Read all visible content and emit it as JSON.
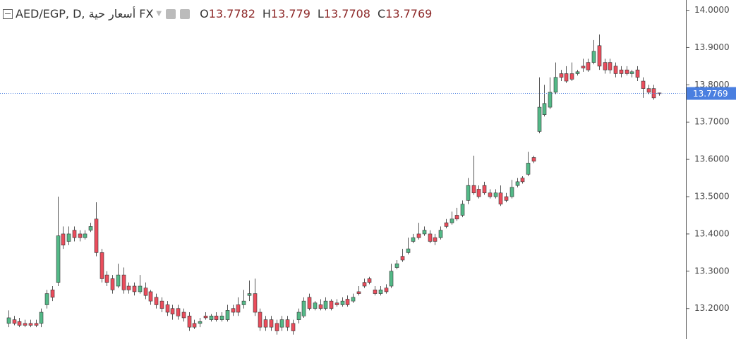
{
  "chart_data": {
    "type": "candlestick",
    "title": "AED/EGP, D, أسعار حية FX",
    "ohlc_labels": [
      "O",
      "H",
      "L",
      "C"
    ],
    "up_color": "#53b987",
    "down_color": "#eb4d5c",
    "last_price_color": "#4a7fe0",
    "ylim": [
      13.1182,
      14.0275
    ],
    "yticks": [
      {
        "value": 14.0,
        "label": "14.0000"
      },
      {
        "value": 13.9,
        "label": "13.9000"
      },
      {
        "value": 13.8,
        "label": "13.8000"
      },
      {
        "value": 13.7,
        "label": "13.7000"
      },
      {
        "value": 13.6,
        "label": "13.6000"
      },
      {
        "value": 13.5,
        "label": "13.5000"
      },
      {
        "value": 13.4,
        "label": "13.4000"
      },
      {
        "value": 13.3,
        "label": "13.3000"
      },
      {
        "value": 13.2,
        "label": "13.2000"
      }
    ],
    "candles": [
      {
        "open": 13.16,
        "high": 13.195,
        "low": 13.15,
        "close": 13.175
      },
      {
        "open": 13.17,
        "high": 13.18,
        "low": 13.155,
        "close": 13.16
      },
      {
        "open": 13.165,
        "high": 13.175,
        "low": 13.15,
        "close": 13.155
      },
      {
        "open": 13.16,
        "high": 13.17,
        "low": 13.15,
        "close": 13.155
      },
      {
        "open": 13.16,
        "high": 13.17,
        "low": 13.15,
        "close": 13.155
      },
      {
        "open": 13.16,
        "high": 13.17,
        "low": 13.15,
        "close": 13.155
      },
      {
        "open": 13.16,
        "high": 13.2,
        "low": 13.15,
        "close": 13.19
      },
      {
        "open": 13.21,
        "high": 13.25,
        "low": 13.2,
        "close": 13.24
      },
      {
        "open": 13.25,
        "high": 13.26,
        "low": 13.22,
        "close": 13.23
      },
      {
        "open": 13.27,
        "high": 13.5,
        "low": 13.26,
        "close": 13.395
      },
      {
        "open": 13.4,
        "high": 13.42,
        "low": 13.36,
        "close": 13.37
      },
      {
        "open": 13.38,
        "high": 13.42,
        "low": 13.37,
        "close": 13.4
      },
      {
        "open": 13.41,
        "high": 13.42,
        "low": 13.38,
        "close": 13.39
      },
      {
        "open": 13.4,
        "high": 13.41,
        "low": 13.38,
        "close": 13.39
      },
      {
        "open": 13.39,
        "high": 13.41,
        "low": 13.385,
        "close": 13.4
      },
      {
        "open": 13.41,
        "high": 13.43,
        "low": 13.405,
        "close": 13.42
      },
      {
        "open": 13.44,
        "high": 13.485,
        "low": 13.34,
        "close": 13.35
      },
      {
        "open": 13.35,
        "high": 13.36,
        "low": 13.27,
        "close": 13.28
      },
      {
        "open": 13.29,
        "high": 13.3,
        "low": 13.26,
        "close": 13.27
      },
      {
        "open": 13.28,
        "high": 13.29,
        "low": 13.24,
        "close": 13.25
      },
      {
        "open": 13.26,
        "high": 13.32,
        "low": 13.255,
        "close": 13.29
      },
      {
        "open": 13.29,
        "high": 13.31,
        "low": 13.24,
        "close": 13.25
      },
      {
        "open": 13.26,
        "high": 13.27,
        "low": 13.24,
        "close": 13.25
      },
      {
        "open": 13.26,
        "high": 13.27,
        "low": 13.235,
        "close": 13.245
      },
      {
        "open": 13.245,
        "high": 13.29,
        "low": 13.24,
        "close": 13.26
      },
      {
        "open": 13.255,
        "high": 13.27,
        "low": 13.225,
        "close": 13.235
      },
      {
        "open": 13.245,
        "high": 13.25,
        "low": 13.21,
        "close": 13.22
      },
      {
        "open": 13.23,
        "high": 13.24,
        "low": 13.2,
        "close": 13.21
      },
      {
        "open": 13.22,
        "high": 13.23,
        "low": 13.19,
        "close": 13.2
      },
      {
        "open": 13.21,
        "high": 13.22,
        "low": 13.18,
        "close": 13.19
      },
      {
        "open": 13.2,
        "high": 13.21,
        "low": 13.17,
        "close": 13.185
      },
      {
        "open": 13.2,
        "high": 13.21,
        "low": 13.17,
        "close": 13.18
      },
      {
        "open": 13.19,
        "high": 13.2,
        "low": 13.165,
        "close": 13.175
      },
      {
        "open": 13.18,
        "high": 13.19,
        "low": 13.14,
        "close": 13.15
      },
      {
        "open": 13.16,
        "high": 13.17,
        "low": 13.145,
        "close": 13.15
      },
      {
        "open": 13.16,
        "high": 13.175,
        "low": 13.15,
        "close": 13.165
      },
      {
        "open": 13.18,
        "high": 13.19,
        "low": 13.17,
        "close": 13.175
      },
      {
        "open": 13.17,
        "high": 13.185,
        "low": 13.165,
        "close": 13.18
      },
      {
        "open": 13.18,
        "high": 13.19,
        "low": 13.165,
        "close": 13.17
      },
      {
        "open": 13.17,
        "high": 13.19,
        "low": 13.165,
        "close": 13.18
      },
      {
        "open": 13.17,
        "high": 13.21,
        "low": 13.165,
        "close": 13.195
      },
      {
        "open": 13.2,
        "high": 13.21,
        "low": 13.18,
        "close": 13.19
      },
      {
        "open": 13.21,
        "high": 13.23,
        "low": 13.18,
        "close": 13.19
      },
      {
        "open": 13.21,
        "high": 13.25,
        "low": 13.2,
        "close": 13.22
      },
      {
        "open": 13.235,
        "high": 13.275,
        "low": 13.22,
        "close": 13.24
      },
      {
        "open": 13.24,
        "high": 13.28,
        "low": 13.18,
        "close": 13.19
      },
      {
        "open": 13.19,
        "high": 13.2,
        "low": 13.14,
        "close": 13.15
      },
      {
        "open": 13.17,
        "high": 13.18,
        "low": 13.14,
        "close": 13.15
      },
      {
        "open": 13.17,
        "high": 13.18,
        "low": 13.14,
        "close": 13.15
      },
      {
        "open": 13.16,
        "high": 13.17,
        "low": 13.13,
        "close": 13.14
      },
      {
        "open": 13.15,
        "high": 13.18,
        "low": 13.14,
        "close": 13.17
      },
      {
        "open": 13.17,
        "high": 13.18,
        "low": 13.14,
        "close": 13.15
      },
      {
        "open": 13.16,
        "high": 13.17,
        "low": 13.13,
        "close": 13.14
      },
      {
        "open": 13.17,
        "high": 13.2,
        "low": 13.16,
        "close": 13.19
      },
      {
        "open": 13.18,
        "high": 13.23,
        "low": 13.175,
        "close": 13.22
      },
      {
        "open": 13.23,
        "high": 13.24,
        "low": 13.195,
        "close": 13.2
      },
      {
        "open": 13.2,
        "high": 13.22,
        "low": 13.195,
        "close": 13.215
      },
      {
        "open": 13.21,
        "high": 13.225,
        "low": 13.195,
        "close": 13.2
      },
      {
        "open": 13.2,
        "high": 13.23,
        "low": 13.195,
        "close": 13.22
      },
      {
        "open": 13.22,
        "high": 13.225,
        "low": 13.195,
        "close": 13.2
      },
      {
        "open": 13.215,
        "high": 13.225,
        "low": 13.205,
        "close": 13.21
      },
      {
        "open": 13.21,
        "high": 13.23,
        "low": 13.205,
        "close": 13.22
      },
      {
        "open": 13.225,
        "high": 13.235,
        "low": 13.205,
        "close": 13.21
      },
      {
        "open": 13.22,
        "high": 13.24,
        "low": 13.215,
        "close": 13.23
      },
      {
        "open": 13.245,
        "high": 13.26,
        "low": 13.235,
        "close": 13.24
      },
      {
        "open": 13.27,
        "high": 13.28,
        "low": 13.255,
        "close": 13.26
      },
      {
        "open": 13.28,
        "high": 13.285,
        "low": 13.265,
        "close": 13.27
      },
      {
        "open": 13.25,
        "high": 13.26,
        "low": 13.235,
        "close": 13.24
      },
      {
        "open": 13.24,
        "high": 13.26,
        "low": 13.235,
        "close": 13.25
      },
      {
        "open": 13.255,
        "high": 13.265,
        "low": 13.24,
        "close": 13.245
      },
      {
        "open": 13.26,
        "high": 13.32,
        "low": 13.255,
        "close": 13.3
      },
      {
        "open": 13.31,
        "high": 13.33,
        "low": 13.305,
        "close": 13.32
      },
      {
        "open": 13.34,
        "high": 13.36,
        "low": 13.325,
        "close": 13.33
      },
      {
        "open": 13.35,
        "high": 13.39,
        "low": 13.345,
        "close": 13.36
      },
      {
        "open": 13.38,
        "high": 13.4,
        "low": 13.375,
        "close": 13.39
      },
      {
        "open": 13.4,
        "high": 13.43,
        "low": 13.385,
        "close": 13.39
      },
      {
        "open": 13.4,
        "high": 13.42,
        "low": 13.395,
        "close": 13.41
      },
      {
        "open": 13.4,
        "high": 13.41,
        "low": 13.375,
        "close": 13.38
      },
      {
        "open": 13.39,
        "high": 13.4,
        "low": 13.37,
        "close": 13.38
      },
      {
        "open": 13.39,
        "high": 13.42,
        "low": 13.385,
        "close": 13.41
      },
      {
        "open": 13.43,
        "high": 13.44,
        "low": 13.415,
        "close": 13.42
      },
      {
        "open": 13.43,
        "high": 13.46,
        "low": 13.425,
        "close": 13.44
      },
      {
        "open": 13.45,
        "high": 13.47,
        "low": 13.435,
        "close": 13.44
      },
      {
        "open": 13.45,
        "high": 13.49,
        "low": 13.445,
        "close": 13.48
      },
      {
        "open": 13.49,
        "high": 13.55,
        "low": 13.48,
        "close": 13.53
      },
      {
        "open": 13.53,
        "high": 13.61,
        "low": 13.505,
        "close": 13.51
      },
      {
        "open": 13.52,
        "high": 13.53,
        "low": 13.495,
        "close": 13.5
      },
      {
        "open": 13.53,
        "high": 13.54,
        "low": 13.505,
        "close": 13.51
      },
      {
        "open": 13.51,
        "high": 13.52,
        "low": 13.495,
        "close": 13.5
      },
      {
        "open": 13.5,
        "high": 13.52,
        "low": 13.495,
        "close": 13.51
      },
      {
        "open": 13.51,
        "high": 13.53,
        "low": 13.475,
        "close": 13.48
      },
      {
        "open": 13.5,
        "high": 13.51,
        "low": 13.485,
        "close": 13.49
      },
      {
        "open": 13.5,
        "high": 13.545,
        "low": 13.495,
        "close": 13.525
      },
      {
        "open": 13.53,
        "high": 13.55,
        "low": 13.525,
        "close": 13.54
      },
      {
        "open": 13.55,
        "high": 13.555,
        "low": 13.535,
        "close": 13.54
      },
      {
        "open": 13.56,
        "high": 13.62,
        "low": 13.555,
        "close": 13.59
      },
      {
        "open": 13.605,
        "high": 13.61,
        "low": 13.59,
        "close": 13.595
      },
      {
        "open": 13.675,
        "high": 13.82,
        "low": 13.67,
        "close": 13.74
      },
      {
        "open": 13.72,
        "high": 13.8,
        "low": 13.715,
        "close": 13.75
      },
      {
        "open": 13.74,
        "high": 13.82,
        "low": 13.735,
        "close": 13.78
      },
      {
        "open": 13.78,
        "high": 13.86,
        "low": 13.775,
        "close": 13.82
      },
      {
        "open": 13.83,
        "high": 13.84,
        "low": 13.81,
        "close": 13.82
      },
      {
        "open": 13.83,
        "high": 13.85,
        "low": 13.805,
        "close": 13.81
      },
      {
        "open": 13.83,
        "high": 13.86,
        "low": 13.81,
        "close": 13.815
      },
      {
        "open": 13.83,
        "high": 13.84,
        "low": 13.825,
        "close": 13.835
      },
      {
        "open": 13.85,
        "high": 13.87,
        "low": 13.835,
        "close": 13.845
      },
      {
        "open": 13.86,
        "high": 13.87,
        "low": 13.835,
        "close": 13.84
      },
      {
        "open": 13.86,
        "high": 13.92,
        "low": 13.855,
        "close": 13.89
      },
      {
        "open": 13.905,
        "high": 13.935,
        "low": 13.84,
        "close": 13.85
      },
      {
        "open": 13.86,
        "high": 13.87,
        "low": 13.83,
        "close": 13.84
      },
      {
        "open": 13.86,
        "high": 13.87,
        "low": 13.83,
        "close": 13.84
      },
      {
        "open": 13.85,
        "high": 13.86,
        "low": 13.82,
        "close": 13.83
      },
      {
        "open": 13.84,
        "high": 13.85,
        "low": 13.82,
        "close": 13.83
      },
      {
        "open": 13.84,
        "high": 13.85,
        "low": 13.825,
        "close": 13.83
      },
      {
        "open": 13.83,
        "high": 13.84,
        "low": 13.82,
        "close": 13.835
      },
      {
        "open": 13.84,
        "high": 13.85,
        "low": 13.81,
        "close": 13.82
      },
      {
        "open": 13.81,
        "high": 13.82,
        "low": 13.765,
        "close": 13.79
      },
      {
        "open": 13.79,
        "high": 13.8,
        "low": 13.775,
        "close": 13.78
      },
      {
        "open": 13.79,
        "high": 13.8,
        "low": 13.76,
        "close": 13.765
      },
      {
        "open": 13.7782,
        "high": 13.779,
        "low": 13.7708,
        "close": 13.7769
      }
    ]
  }
}
